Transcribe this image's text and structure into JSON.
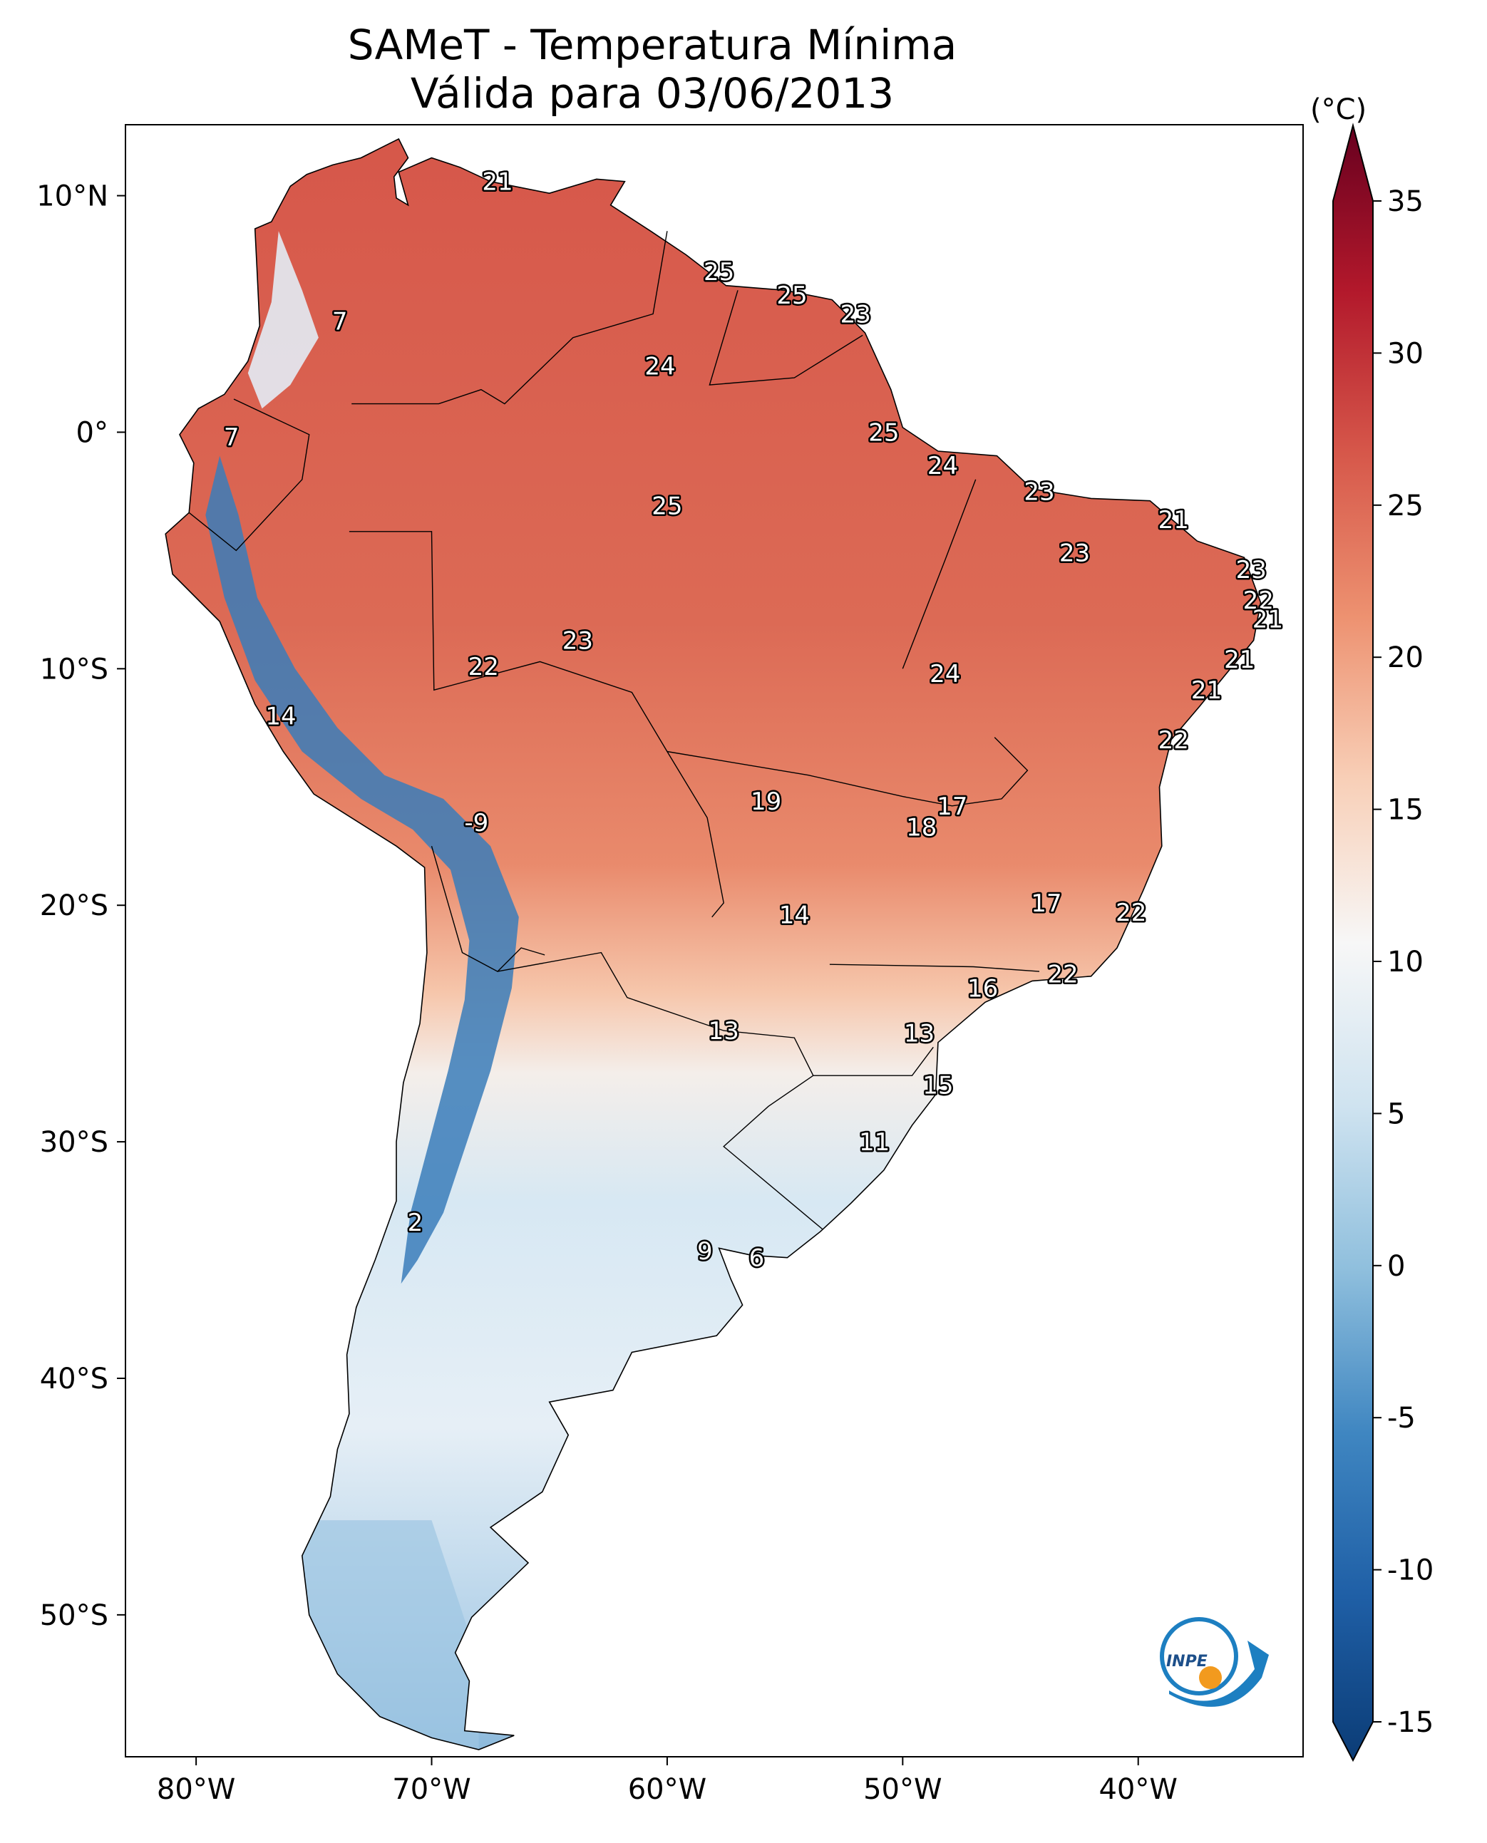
{
  "title": "SAMeT - Temperatura Mínima",
  "subtitle": "Válida para 03/06/2013",
  "colorbar": {
    "unit": "(°C)",
    "ticks": [
      "35",
      "30",
      "25",
      "20",
      "15",
      "10",
      "5",
      "0",
      "-5",
      "-10",
      "-15"
    ],
    "range": [
      -15,
      35
    ],
    "colors": {
      "c-15": "#0b3c76",
      "c-10": "#1f5fa6",
      "c-5": "#3f86c1",
      "c0": "#8fbfdd",
      "c5": "#cfe3f0",
      "c10": "#f7f7f7",
      "c15": "#f8cfb7",
      "c20": "#ed9170",
      "c25": "#d6574a",
      "c30": "#b2182b",
      "c35": "#67001f"
    }
  },
  "axes": {
    "lat_labels": [
      "10°N",
      "0°",
      "10°S",
      "20°S",
      "30°S",
      "40°S",
      "50°S"
    ],
    "lon_labels": [
      "80°W",
      "70°W",
      "60°W",
      "50°W",
      "40°W"
    ]
  },
  "station_labels": [
    {
      "text": "21",
      "lon": -67.2,
      "lat": 10.6
    },
    {
      "text": "7",
      "lon": -73.9,
      "lat": 4.7
    },
    {
      "text": "7",
      "lon": -78.5,
      "lat": -0.2
    },
    {
      "text": "25",
      "lon": -57.8,
      "lat": 6.8
    },
    {
      "text": "25",
      "lon": -54.7,
      "lat": 5.8
    },
    {
      "text": "23",
      "lon": -52.0,
      "lat": 5.0
    },
    {
      "text": "24",
      "lon": -60.3,
      "lat": 2.8
    },
    {
      "text": "25",
      "lon": -50.8,
      "lat": 0.0
    },
    {
      "text": "24",
      "lon": -48.3,
      "lat": -1.4
    },
    {
      "text": "25",
      "lon": -60.0,
      "lat": -3.1
    },
    {
      "text": "23",
      "lon": -44.2,
      "lat": -2.5
    },
    {
      "text": "21",
      "lon": -38.5,
      "lat": -3.7
    },
    {
      "text": "23",
      "lon": -42.7,
      "lat": -5.1
    },
    {
      "text": "23",
      "lon": -35.2,
      "lat": -5.8
    },
    {
      "text": "22",
      "lon": -34.9,
      "lat": -7.1
    },
    {
      "text": "21",
      "lon": -34.5,
      "lat": -7.9
    },
    {
      "text": "23",
      "lon": -63.8,
      "lat": -8.8
    },
    {
      "text": "22",
      "lon": -67.8,
      "lat": -9.9
    },
    {
      "text": "24",
      "lon": -48.2,
      "lat": -10.2
    },
    {
      "text": "21",
      "lon": -35.7,
      "lat": -9.6
    },
    {
      "text": "21",
      "lon": -37.1,
      "lat": -10.9
    },
    {
      "text": "14",
      "lon": -76.4,
      "lat": -12.0
    },
    {
      "text": "22",
      "lon": -38.5,
      "lat": -13.0
    },
    {
      "text": "-9",
      "lon": -68.1,
      "lat": -16.5
    },
    {
      "text": "19",
      "lon": -55.8,
      "lat": -15.6
    },
    {
      "text": "17",
      "lon": -47.9,
      "lat": -15.8
    },
    {
      "text": "18",
      "lon": -49.2,
      "lat": -16.7
    },
    {
      "text": "14",
      "lon": -54.6,
      "lat": -20.4
    },
    {
      "text": "17",
      "lon": -43.9,
      "lat": -19.9
    },
    {
      "text": "22",
      "lon": -40.3,
      "lat": -20.3
    },
    {
      "text": "22",
      "lon": -43.2,
      "lat": -22.9
    },
    {
      "text": "16",
      "lon": -46.6,
      "lat": -23.5
    },
    {
      "text": "13",
      "lon": -57.6,
      "lat": -25.3
    },
    {
      "text": "13",
      "lon": -49.3,
      "lat": -25.4
    },
    {
      "text": "15",
      "lon": -48.5,
      "lat": -27.6
    },
    {
      "text": "11",
      "lon": -51.2,
      "lat": -30.0
    },
    {
      "text": "2",
      "lon": -70.7,
      "lat": -33.4
    },
    {
      "text": "9",
      "lon": -58.4,
      "lat": -34.6
    },
    {
      "text": "6",
      "lon": -56.2,
      "lat": -34.9
    }
  ],
  "logo": {
    "text": "INPE"
  }
}
